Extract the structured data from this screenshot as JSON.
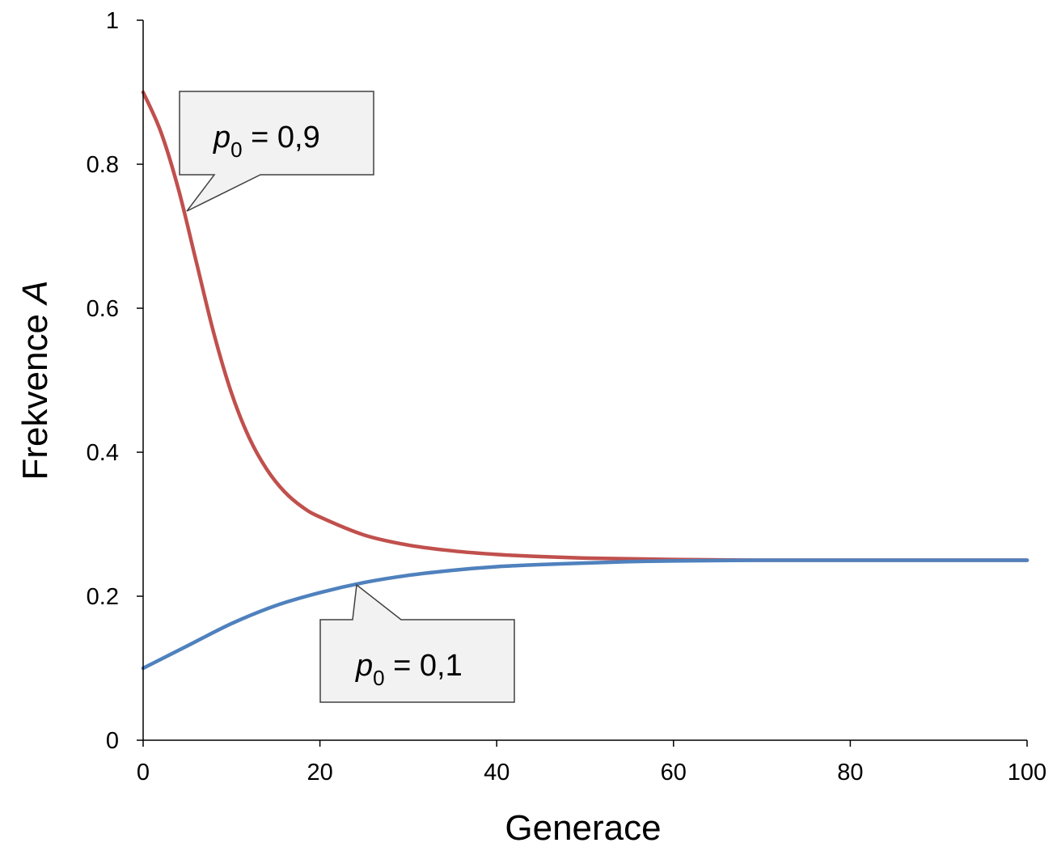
{
  "chart_data": {
    "type": "line",
    "title": "",
    "xlabel": "Generace",
    "ylabel_prefix": "Frekvence ",
    "ylabel_symbol": "A",
    "xlim": [
      0,
      100
    ],
    "ylim": [
      0,
      1
    ],
    "x_ticks": [
      "0",
      "20",
      "40",
      "60",
      "80",
      "100"
    ],
    "y_ticks": [
      "0",
      "0.2",
      "0.4",
      "0.6",
      "0.8",
      "1"
    ],
    "grid": false,
    "legend": "none",
    "series": [
      {
        "color": "#c0504d",
        "x": [
          0,
          2,
          4,
          6,
          8,
          10,
          12,
          14,
          16,
          18,
          20,
          25,
          30,
          35,
          40,
          45,
          50,
          55,
          60,
          70,
          80,
          90,
          100
        ],
        "y": [
          0.9,
          0.845,
          0.765,
          0.665,
          0.565,
          0.482,
          0.42,
          0.376,
          0.345,
          0.324,
          0.31,
          0.285,
          0.271,
          0.263,
          0.258,
          0.255,
          0.253,
          0.252,
          0.251,
          0.25,
          0.25,
          0.25,
          0.25
        ]
      },
      {
        "color": "#4f81bd",
        "x": [
          0,
          5,
          10,
          15,
          20,
          25,
          30,
          35,
          40,
          45,
          50,
          55,
          60,
          70,
          80,
          90,
          100
        ],
        "y": [
          0.1,
          0.131,
          0.162,
          0.187,
          0.205,
          0.219,
          0.229,
          0.236,
          0.241,
          0.244,
          0.246,
          0.248,
          0.249,
          0.25,
          0.25,
          0.25,
          0.25
        ]
      }
    ],
    "annotations": [
      {
        "symbol": "p",
        "subscript": "0",
        "text": " = 0,9",
        "series_index": 0
      },
      {
        "symbol": "p",
        "subscript": "0",
        "text": " = 0,1",
        "series_index": 1
      }
    ]
  }
}
